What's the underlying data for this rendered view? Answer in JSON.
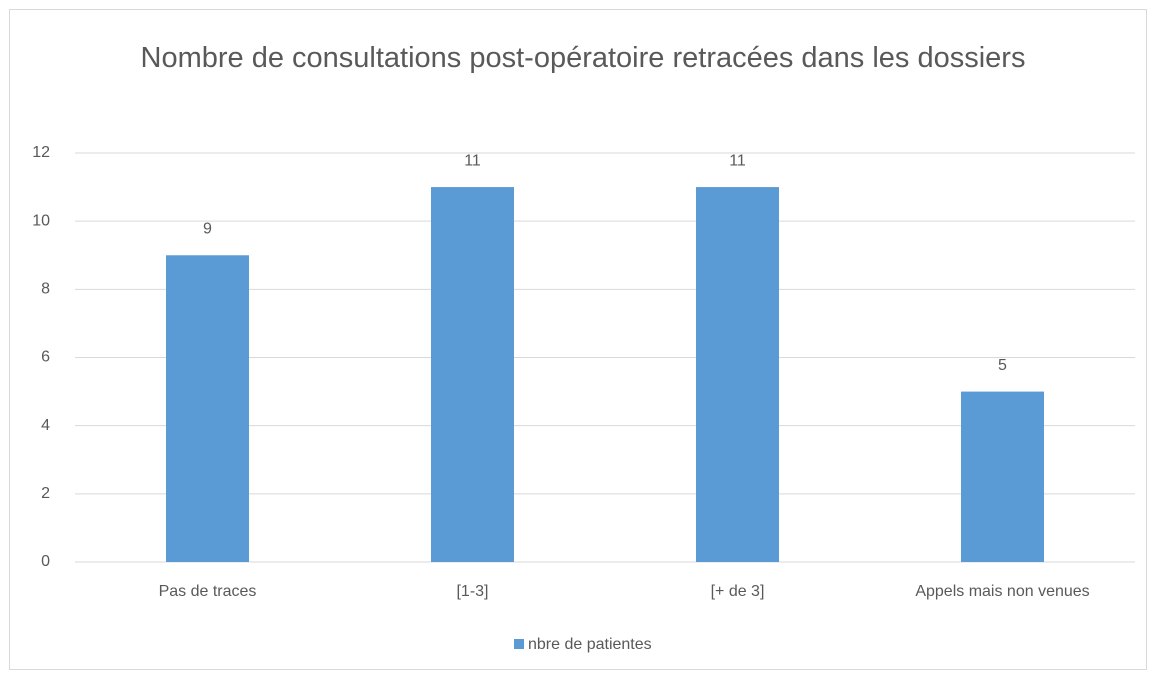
{
  "chart_data": {
    "type": "bar",
    "title": "Nombre de consultations post-opératoire retracées dans les dossiers",
    "categories": [
      "Pas de traces",
      "[1-3]",
      "[+ de 3]",
      "Appels mais non venues"
    ],
    "series": [
      {
        "name": "nbre de patientes",
        "color": "#5b9bd5",
        "values": [
          9,
          11,
          11,
          5
        ]
      }
    ],
    "ylim": [
      0,
      12
    ],
    "yticks": [
      0,
      2,
      4,
      6,
      8,
      10,
      12
    ],
    "grid": true,
    "legend": "bottom"
  }
}
